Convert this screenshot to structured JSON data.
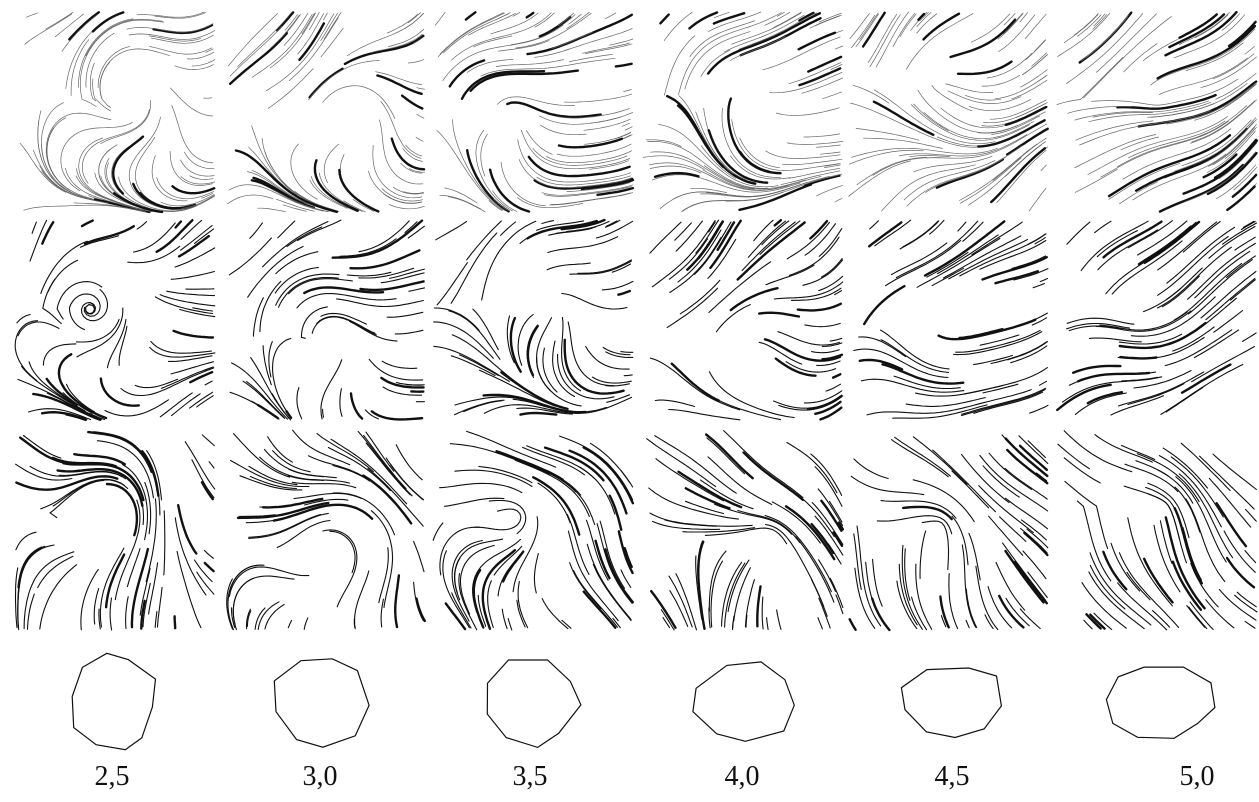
{
  "labels": [
    "2,5",
    "3,0",
    "3,5",
    "4,0",
    "4,5",
    "5,0"
  ]
}
